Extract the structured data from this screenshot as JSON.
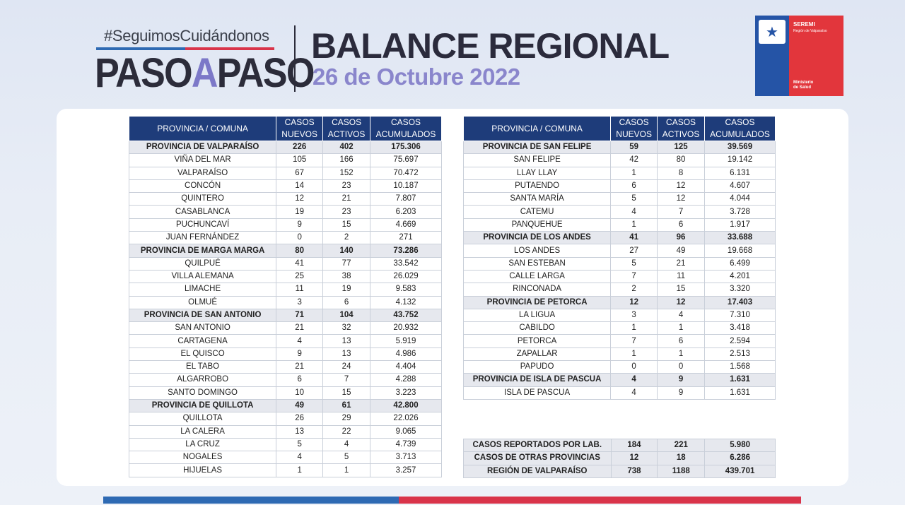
{
  "header": {
    "hashtag": "#SeguimosCuidándonos",
    "paso_left": "PASO",
    "paso_mid": "A",
    "paso_right": "PASO",
    "title": "BALANCE REGIONAL",
    "date": "26 de Octubre 2022"
  },
  "logo": {
    "seremi": "SEREMI",
    "region": "Región de Valparaíso",
    "ministerio_line1": "Ministerio",
    "ministerio_line2": "de Salud"
  },
  "columns": {
    "provincia": "PROVINCIA / COMUNA",
    "nuevos_1": "CASOS",
    "nuevos_2": "NUEVOS",
    "activos_1": "CASOS",
    "activos_2": "ACTIVOS",
    "acum_1": "CASOS",
    "acum_2": "ACUMULADOS"
  },
  "left_table": [
    {
      "name": "PROVINCIA DE VALPARAÍSO",
      "nuevos": "226",
      "activos": "402",
      "acum": "175.306",
      "prov": true
    },
    {
      "name": "VIÑA DEL MAR",
      "nuevos": "105",
      "activos": "166",
      "acum": "75.697"
    },
    {
      "name": "VALPARAÍSO",
      "nuevos": "67",
      "activos": "152",
      "acum": "70.472"
    },
    {
      "name": "CONCÓN",
      "nuevos": "14",
      "activos": "23",
      "acum": "10.187"
    },
    {
      "name": "QUINTERO",
      "nuevos": "12",
      "activos": "21",
      "acum": "7.807"
    },
    {
      "name": "CASABLANCA",
      "nuevos": "19",
      "activos": "23",
      "acum": "6.203"
    },
    {
      "name": "PUCHUNCAVÍ",
      "nuevos": "9",
      "activos": "15",
      "acum": "4.669"
    },
    {
      "name": "JUAN FERNÁNDEZ",
      "nuevos": "0",
      "activos": "2",
      "acum": "271"
    },
    {
      "name": "PROVINCIA DE MARGA MARGA",
      "nuevos": "80",
      "activos": "140",
      "acum": "73.286",
      "prov": true
    },
    {
      "name": "QUILPUÉ",
      "nuevos": "41",
      "activos": "77",
      "acum": "33.542"
    },
    {
      "name": "VILLA ALEMANA",
      "nuevos": "25",
      "activos": "38",
      "acum": "26.029"
    },
    {
      "name": "LIMACHE",
      "nuevos": "11",
      "activos": "19",
      "acum": "9.583"
    },
    {
      "name": "OLMUÉ",
      "nuevos": "3",
      "activos": "6",
      "acum": "4.132"
    },
    {
      "name": "PROVINCIA DE SAN ANTONIO",
      "nuevos": "71",
      "activos": "104",
      "acum": "43.752",
      "prov": true
    },
    {
      "name": "SAN ANTONIO",
      "nuevos": "21",
      "activos": "32",
      "acum": "20.932"
    },
    {
      "name": "CARTAGENA",
      "nuevos": "4",
      "activos": "13",
      "acum": "5.919"
    },
    {
      "name": "EL QUISCO",
      "nuevos": "9",
      "activos": "13",
      "acum": "4.986"
    },
    {
      "name": "EL TABO",
      "nuevos": "21",
      "activos": "24",
      "acum": "4.404"
    },
    {
      "name": "ALGARROBO",
      "nuevos": "6",
      "activos": "7",
      "acum": "4.288"
    },
    {
      "name": "SANTO DOMINGO",
      "nuevos": "10",
      "activos": "15",
      "acum": "3.223"
    },
    {
      "name": "PROVINCIA DE QUILLOTA",
      "nuevos": "49",
      "activos": "61",
      "acum": "42.800",
      "prov": true
    },
    {
      "name": "QUILLOTA",
      "nuevos": "26",
      "activos": "29",
      "acum": "22.026"
    },
    {
      "name": "LA CALERA",
      "nuevos": "13",
      "activos": "22",
      "acum": "9.065"
    },
    {
      "name": "LA CRUZ",
      "nuevos": "5",
      "activos": "4",
      "acum": "4.739"
    },
    {
      "name": "NOGALES",
      "nuevos": "4",
      "activos": "5",
      "acum": "3.713"
    },
    {
      "name": "HIJUELAS",
      "nuevos": "1",
      "activos": "1",
      "acum": "3.257"
    }
  ],
  "right_table": [
    {
      "name": "PROVINCIA DE SAN FELIPE",
      "nuevos": "59",
      "activos": "125",
      "acum": "39.569",
      "prov": true
    },
    {
      "name": "SAN FELIPE",
      "nuevos": "42",
      "activos": "80",
      "acum": "19.142"
    },
    {
      "name": "LLAY LLAY",
      "nuevos": "1",
      "activos": "8",
      "acum": "6.131"
    },
    {
      "name": "PUTAENDO",
      "nuevos": "6",
      "activos": "12",
      "acum": "4.607"
    },
    {
      "name": "SANTA MARÍA",
      "nuevos": "5",
      "activos": "12",
      "acum": "4.044"
    },
    {
      "name": "CATEMU",
      "nuevos": "4",
      "activos": "7",
      "acum": "3.728"
    },
    {
      "name": "PANQUEHUE",
      "nuevos": "1",
      "activos": "6",
      "acum": "1.917"
    },
    {
      "name": "PROVINCIA DE LOS ANDES",
      "nuevos": "41",
      "activos": "96",
      "acum": "33.688",
      "prov": true
    },
    {
      "name": "LOS ANDES",
      "nuevos": "27",
      "activos": "49",
      "acum": "19.668"
    },
    {
      "name": "SAN ESTEBAN",
      "nuevos": "5",
      "activos": "21",
      "acum": "6.499"
    },
    {
      "name": "CALLE LARGA",
      "nuevos": "7",
      "activos": "11",
      "acum": "4.201"
    },
    {
      "name": "RINCONADA",
      "nuevos": "2",
      "activos": "15",
      "acum": "3.320"
    },
    {
      "name": "PROVINCIA DE PETORCA",
      "nuevos": "12",
      "activos": "12",
      "acum": "17.403",
      "prov": true
    },
    {
      "name": "LA LIGUA",
      "nuevos": "3",
      "activos": "4",
      "acum": "7.310"
    },
    {
      "name": "CABILDO",
      "nuevos": "1",
      "activos": "1",
      "acum": "3.418"
    },
    {
      "name": "PETORCA",
      "nuevos": "7",
      "activos": "6",
      "acum": "2.594"
    },
    {
      "name": "ZAPALLAR",
      "nuevos": "1",
      "activos": "1",
      "acum": "2.513"
    },
    {
      "name": "PAPUDO",
      "nuevos": "0",
      "activos": "0",
      "acum": "1.568"
    },
    {
      "name": "PROVINCIA DE ISLA DE PASCUA",
      "nuevos": "4",
      "activos": "9",
      "acum": "1.631",
      "prov": true
    },
    {
      "name": "ISLA DE PASCUA",
      "nuevos": "4",
      "activos": "9",
      "acum": "1.631"
    }
  ],
  "summary_table": [
    {
      "name": "CASOS REPORTADOS POR LAB.",
      "nuevos": "184",
      "activos": "221",
      "acum": "5.980"
    },
    {
      "name": "CASOS DE OTRAS PROVINCIAS",
      "nuevos": "12",
      "activos": "18",
      "acum": "6.286"
    },
    {
      "name": "REGIÓN DE VALPARAÍSO",
      "nuevos": "738",
      "activos": "1188",
      "acum": "439.701"
    }
  ],
  "colors": {
    "header_blue": "#1e3c7a",
    "title_purple": "#8a86cc",
    "footer_blue": "#2e6ab3",
    "footer_red": "#d9344a"
  }
}
